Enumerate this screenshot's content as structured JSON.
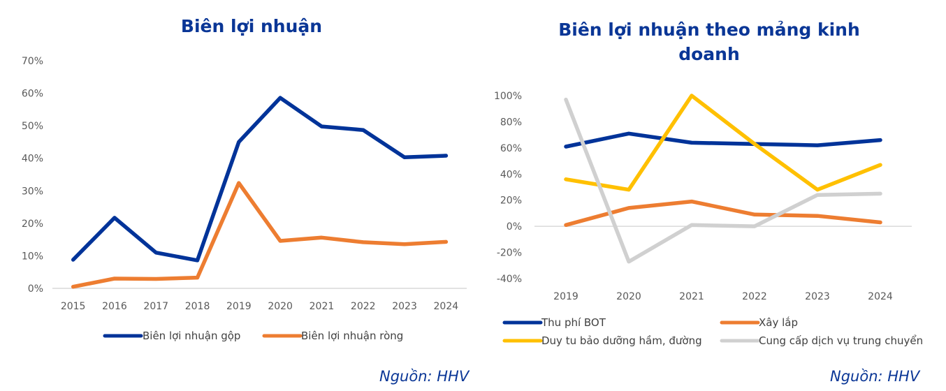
{
  "chart_data": [
    {
      "type": "line",
      "title": "Biên lợi nhuận",
      "xlabel": "",
      "ylabel": "",
      "categories": [
        "2015",
        "2016",
        "2017",
        "2018",
        "2019",
        "2020",
        "2021",
        "2022",
        "2023",
        "2024"
      ],
      "yticks": [
        "0%",
        "10%",
        "20%",
        "30%",
        "40%",
        "50%",
        "60%",
        "70%"
      ],
      "ylim": [
        0,
        70
      ],
      "grid": false,
      "legend_position": "bottom",
      "series": [
        {
          "name": "Biên lợi nhuận gộp",
          "color": "#003399",
          "values": [
            8.8,
            21.7,
            11.0,
            8.6,
            45.0,
            58.6,
            49.8,
            48.7,
            40.3,
            40.8
          ]
        },
        {
          "name": "Biên lợi nhuận ròng",
          "color": "#ed7d31",
          "values": [
            0.5,
            3.0,
            2.9,
            3.3,
            32.4,
            14.6,
            15.6,
            14.2,
            13.6,
            14.3
          ]
        }
      ],
      "source": "Nguồn: HHV"
    },
    {
      "type": "line",
      "title": "Biên lợi nhuận theo mảng kinh doanh",
      "xlabel": "",
      "ylabel": "",
      "categories": [
        "2019",
        "2020",
        "2021",
        "2022",
        "2023",
        "2024"
      ],
      "yticks": [
        "-40%",
        "-20%",
        "0%",
        "20%",
        "40%",
        "60%",
        "80%",
        "100%"
      ],
      "ylim": [
        -40,
        100
      ],
      "grid": false,
      "legend_position": "bottom",
      "series": [
        {
          "name": "Thu phí BOT",
          "color": "#003399",
          "values": [
            61,
            71,
            64,
            63,
            62,
            66
          ]
        },
        {
          "name": "Xây lắp",
          "color": "#ed7d31",
          "values": [
            1,
            14,
            19,
            9,
            8,
            3
          ]
        },
        {
          "name": "Duy tu bảo dưỡng hầm, đường",
          "color": "#ffc000",
          "values": [
            36,
            28,
            100,
            63,
            28,
            47
          ]
        },
        {
          "name": "Cung cấp dịch vụ trung chuyển",
          "color": "#d0d0d0",
          "values": [
            97,
            -27,
            1,
            0,
            24,
            25
          ]
        }
      ],
      "source": "Nguồn: HHV"
    }
  ]
}
